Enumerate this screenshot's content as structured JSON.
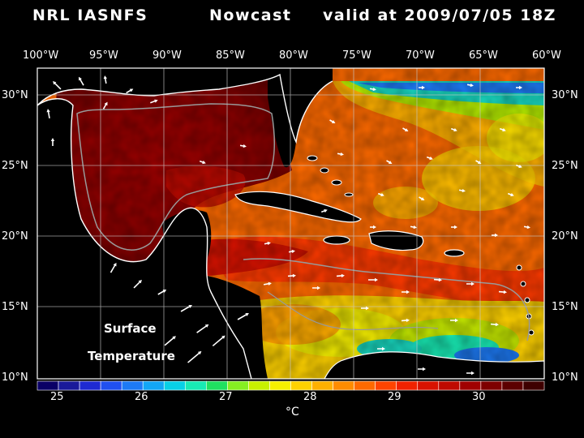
{
  "title": {
    "model": "NRL IASNFS",
    "product": "Nowcast",
    "valid": "valid at 2009/07/05 18Z"
  },
  "map": {
    "lon_labels": [
      "100°W",
      "95°W",
      "90°W",
      "85°W",
      "80°W",
      "75°W",
      "70°W",
      "65°W",
      "60°W"
    ],
    "lat_labels": [
      "30°N",
      "25°N",
      "20°N",
      "15°N",
      "10°N"
    ],
    "lon_range": [
      -100,
      -60
    ],
    "lat_range": [
      10,
      31
    ],
    "overlay": [
      "Surface",
      "Temperature"
    ]
  },
  "colorbar": {
    "ticks": [
      "25",
      "26",
      "27",
      "28",
      "29",
      "30"
    ],
    "unit": "°C",
    "colors": [
      "#0a0066",
      "#1a1a9a",
      "#1e2ad2",
      "#2050f0",
      "#1d7af5",
      "#12a6f5",
      "#08d0e6",
      "#18eab4",
      "#20e060",
      "#86ee22",
      "#c8f000",
      "#f6f000",
      "#ffd200",
      "#ffb000",
      "#ff8c00",
      "#ff6a00",
      "#ff4400",
      "#f02200",
      "#d81200",
      "#bf0a00",
      "#a00000",
      "#7e0000",
      "#5c0000",
      "#3e0000"
    ]
  }
}
